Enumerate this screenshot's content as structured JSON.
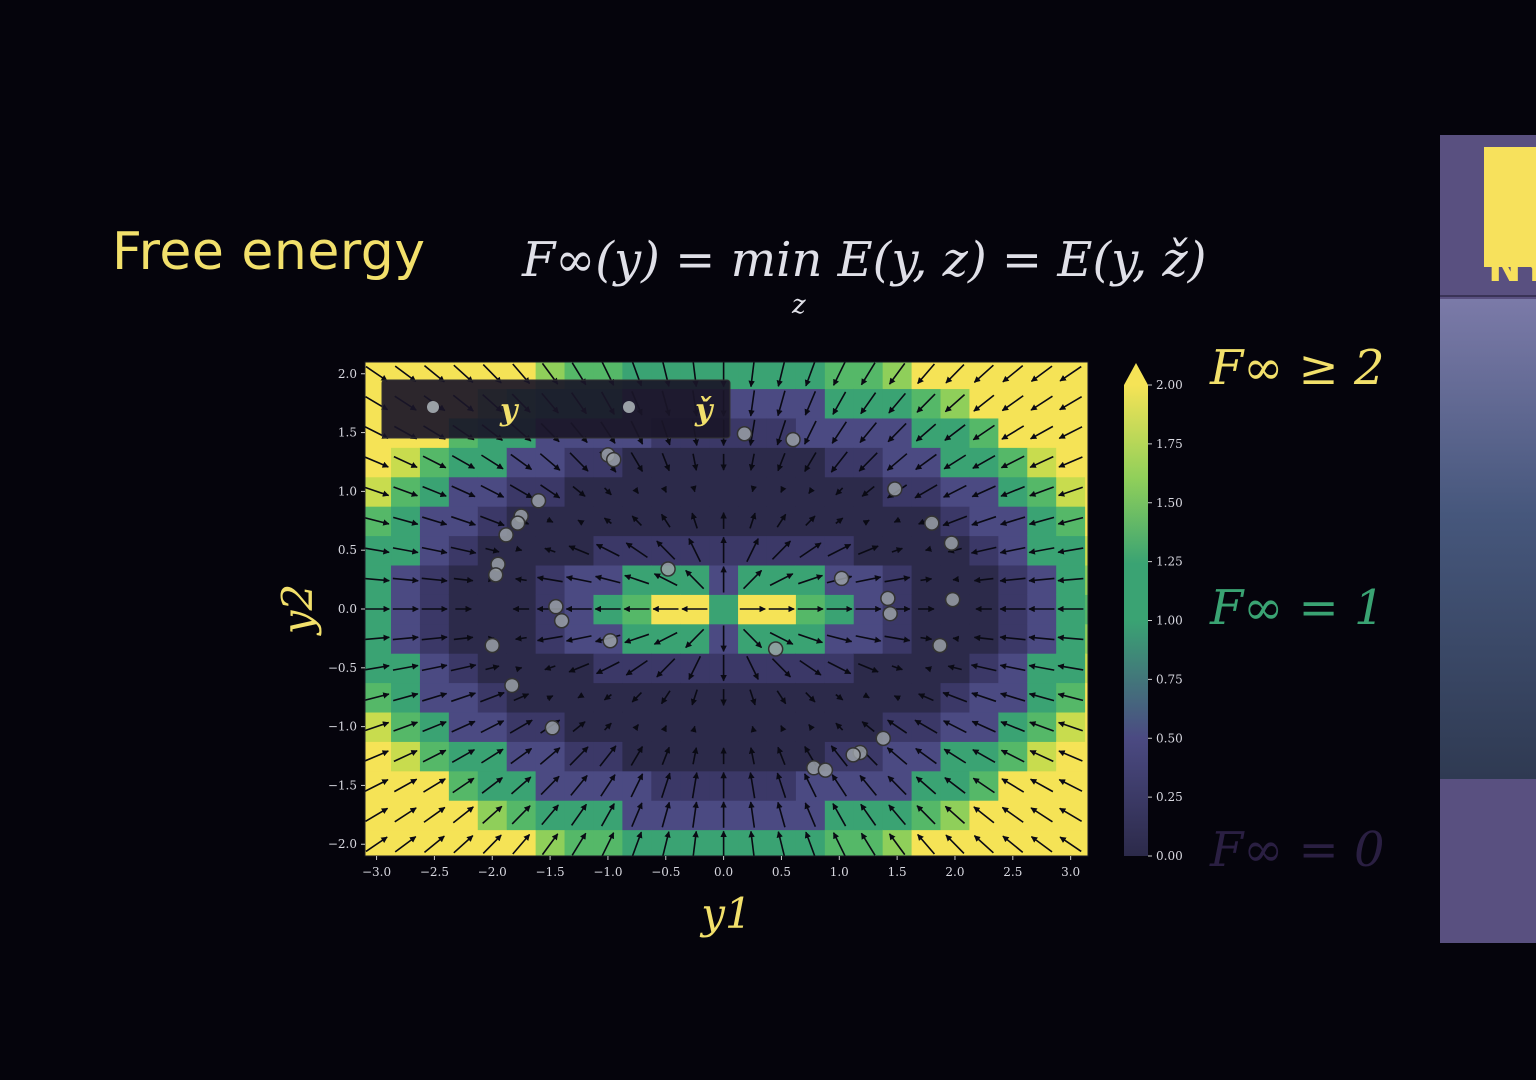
{
  "slide": {
    "title": "Free energy",
    "formula": "F∞(y) = min E(y, z) = E(y, ž)",
    "formula_subscript": "z"
  },
  "annotations": [
    {
      "text": "F∞ ≥ 2",
      "color": "#f2e06b"
    },
    {
      "text": "F∞ = 1",
      "color": "#3aa373"
    },
    {
      "text": "F∞ = 0",
      "color": "#2a1f42"
    }
  ],
  "side_panel": {
    "logo_text": "NY"
  },
  "chart_data": {
    "type": "heatmap",
    "xlabel": "y1",
    "ylabel": "y2",
    "xlim": [
      -3.1,
      3.15
    ],
    "ylim": [
      -2.1,
      2.1
    ],
    "xticks": [
      "−3.0",
      "−2.5",
      "−2.0",
      "−1.5",
      "−1.0",
      "−0.5",
      "0.0",
      "0.5",
      "1.0",
      "1.5",
      "2.0",
      "2.5",
      "3.0"
    ],
    "xtick_values": [
      -3.0,
      -2.5,
      -2.0,
      -1.5,
      -1.0,
      -0.5,
      0.0,
      0.5,
      1.0,
      1.5,
      2.0,
      2.5,
      3.0
    ],
    "yticks": [
      "−2.0",
      "−1.5",
      "−1.0",
      "−0.5",
      "0.0",
      "0.5",
      "1.0",
      "1.5",
      "2.0"
    ],
    "ytick_values": [
      -2.0,
      -1.5,
      -1.0,
      -0.5,
      0.0,
      0.5,
      1.0,
      1.5,
      2.0
    ],
    "colorbar": {
      "range": [
        0,
        2.0
      ],
      "ticks": [
        "0.00",
        "0.25",
        "0.50",
        "0.75",
        "1.00",
        "1.25",
        "1.50",
        "1.75",
        "2.00"
      ],
      "tick_values": [
        0,
        0.25,
        0.5,
        0.75,
        1.0,
        1.25,
        1.5,
        1.75,
        2.0
      ],
      "extend": "max"
    },
    "colormap": [
      "#2c2a4a",
      "#3b3867",
      "#4b4a82",
      "#3f7a7a",
      "#3aa373",
      "#55b868",
      "#8fcf5a",
      "#c8dc4e",
      "#f5e356"
    ],
    "legend": {
      "placement": "top-left",
      "entries": [
        "y",
        "y̌"
      ]
    },
    "field": "min over z of distance to ellipse with semi-axes 2.0 and 1.0, squared",
    "ellipse_axes": [
      2.0,
      1.0
    ],
    "quiver": "gradient field pointing inward toward the ellipse",
    "series": [
      {
        "name": "y",
        "marker_color": "#9aa0a6",
        "points": [
          [
            -1.0,
            1.31
          ],
          [
            -0.95,
            1.27
          ],
          [
            0.18,
            1.49
          ],
          [
            0.6,
            1.44
          ],
          [
            -1.6,
            0.92
          ],
          [
            1.48,
            1.02
          ],
          [
            -1.75,
            0.79
          ],
          [
            -1.78,
            0.73
          ],
          [
            -1.88,
            0.63
          ],
          [
            1.8,
            0.73
          ],
          [
            -1.95,
            0.38
          ],
          [
            -1.97,
            0.29
          ],
          [
            1.97,
            0.56
          ],
          [
            -0.48,
            0.34
          ],
          [
            1.02,
            0.26
          ],
          [
            -1.45,
            0.02
          ],
          [
            -1.4,
            -0.1
          ],
          [
            1.42,
            0.09
          ],
          [
            1.44,
            -0.04
          ],
          [
            1.98,
            0.08
          ],
          [
            -0.98,
            -0.27
          ],
          [
            -2.0,
            -0.31
          ],
          [
            0.45,
            -0.34
          ],
          [
            1.87,
            -0.31
          ],
          [
            -1.83,
            -0.65
          ],
          [
            -1.48,
            -1.01
          ],
          [
            1.38,
            -1.1
          ],
          [
            1.18,
            -1.22
          ],
          [
            1.12,
            -1.24
          ],
          [
            0.78,
            -1.35
          ],
          [
            0.88,
            -1.37
          ]
        ]
      }
    ]
  }
}
